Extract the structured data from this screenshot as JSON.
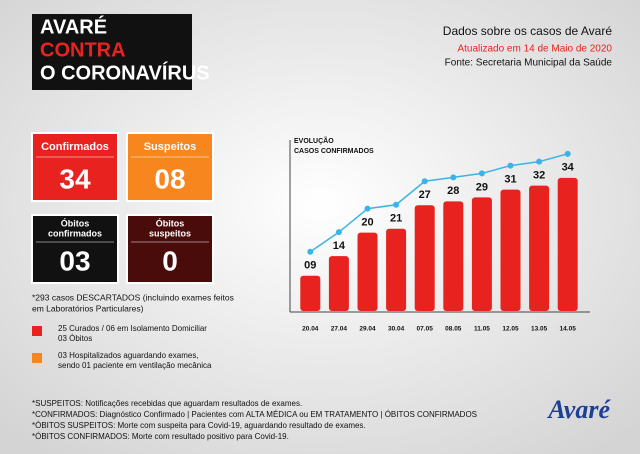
{
  "header": {
    "lines": [
      "AVARÉ",
      "CONTRA",
      "O CORONAVÍRUS"
    ]
  },
  "info": {
    "title": "Dados sobre os casos de Avaré",
    "updated": "Atualizado em 14 de Maio de 2020",
    "source": "Fonte: Secretaria Municipal da Saúde"
  },
  "cards": [
    {
      "label": [
        "Confirmados"
      ],
      "value": "34",
      "color": "#e8231f"
    },
    {
      "label": [
        "Suspeitos"
      ],
      "value": "08",
      "color": "#f7861f"
    },
    {
      "label": [
        "Óbitos",
        "confirmados"
      ],
      "value": "03",
      "color": "#111111"
    },
    {
      "label": [
        "Óbitos",
        "suspeitos"
      ],
      "value": "0",
      "color": "#4a0b0b"
    }
  ],
  "discarded": [
    "*293 casos DESCARTADOS (incluindo exames feitos",
    "em Laboratórios Particulares)"
  ],
  "legend": [
    {
      "color": "#e8231f",
      "lines": [
        "25 Curados / 06 em Isolamento Domiciliar",
        "03 Óbitos"
      ]
    },
    {
      "color": "#f7861f",
      "lines": [
        "03 Hospitalizados aguardando exames,",
        "sendo 01 paciente em ventilação mecânica"
      ]
    }
  ],
  "footnotes": [
    "*SUSPEITOS: Notificações recebidas que aguardam resultados de exames.",
    "*CONFIRMADOS: Diagnóstico Confirmado | Pacientes com ALTA MÉDICA ou EM TRATAMENTO | ÓBITOS CONFIRMADOS",
    "*ÓBITOS SUSPEITOS: Morte com suspeita para Covid-19, aguardando resultado de exames.",
    "*ÓBITOS CONFIRMADOS: Morte com resultado positivo para Covid-19."
  ],
  "logo": "Avaré",
  "chart_data": {
    "type": "bar",
    "title": "EVOLUÇÃO",
    "subtitle": "CASOS CONFIRMADOS",
    "categories": [
      "20.04",
      "27.04",
      "29.04",
      "30.04",
      "07.05",
      "08.05",
      "11.05",
      "12.05",
      "13.05",
      "14.05"
    ],
    "values": [
      9,
      14,
      20,
      21,
      27,
      28,
      29,
      31,
      32,
      34
    ],
    "value_labels": [
      "09",
      "14",
      "20",
      "21",
      "27",
      "28",
      "29",
      "31",
      "32",
      "34"
    ],
    "color": "#e8231f",
    "line_color": "#39b4e6",
    "ylim": [
      0,
      36
    ]
  }
}
